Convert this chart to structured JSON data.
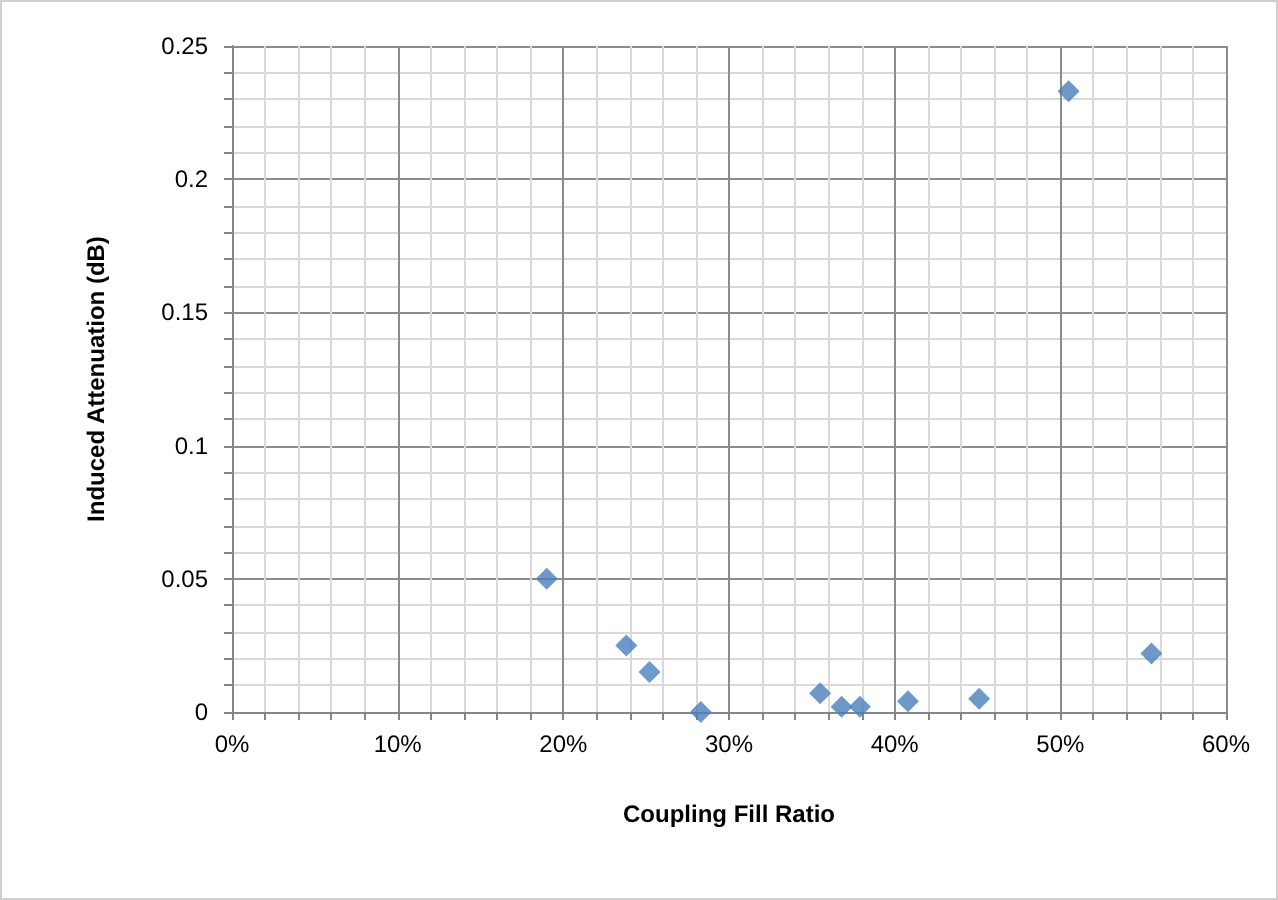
{
  "chart_data": {
    "type": "scatter",
    "xlabel": "Coupling Fill Ratio",
    "ylabel": "Induced Attenuation (dB)",
    "x": [
      0.19,
      0.238,
      0.252,
      0.283,
      0.355,
      0.368,
      0.379,
      0.408,
      0.451,
      0.505,
      0.555
    ],
    "series": [
      {
        "color": "#4a7ebb",
        "values": [
          0.05,
          0.025,
          0.015,
          0,
          0.007,
          0.002,
          0.002,
          0.004,
          0.005,
          0.233,
          0.022
        ]
      }
    ],
    "xlim": [
      0,
      0.6
    ],
    "xticks": [
      {
        "value": 0,
        "label": "0%"
      },
      {
        "value": 0.02,
        "label": null
      },
      {
        "value": 0.04,
        "label": null
      },
      {
        "value": 0.06,
        "label": null
      },
      {
        "value": 0.08,
        "label": null
      },
      {
        "value": 0.1,
        "label": "10%"
      },
      {
        "value": 0.12,
        "label": null
      },
      {
        "value": 0.14,
        "label": null
      },
      {
        "value": 0.16,
        "label": null
      },
      {
        "value": 0.18,
        "label": null
      },
      {
        "value": 0.2,
        "label": "20%"
      },
      {
        "value": 0.22,
        "label": null
      },
      {
        "value": 0.24,
        "label": null
      },
      {
        "value": 0.26,
        "label": null
      },
      {
        "value": 0.28,
        "label": null
      },
      {
        "value": 0.3,
        "label": "30%"
      },
      {
        "value": 0.32,
        "label": null
      },
      {
        "value": 0.34,
        "label": null
      },
      {
        "value": 0.36,
        "label": null
      },
      {
        "value": 0.38,
        "label": null
      },
      {
        "value": 0.4,
        "label": "40%"
      },
      {
        "value": 0.42,
        "label": null
      },
      {
        "value": 0.44,
        "label": null
      },
      {
        "value": 0.46,
        "label": null
      },
      {
        "value": 0.48,
        "label": null
      },
      {
        "value": 0.5,
        "label": "50%"
      },
      {
        "value": 0.52,
        "label": null
      },
      {
        "value": 0.54,
        "label": null
      },
      {
        "value": 0.56,
        "label": null
      },
      {
        "value": 0.58,
        "label": null
      },
      {
        "value": 0.6,
        "label": "60%"
      }
    ],
    "ylim": [
      0,
      0.25
    ],
    "yticks": [
      0,
      {
        "value": 0.01,
        "label": null
      },
      {
        "value": 0.02,
        "label": null
      },
      {
        "value": 0.03,
        "label": null
      },
      {
        "value": 0.04,
        "label": null
      },
      0.05,
      {
        "value": 0.06,
        "label": null
      },
      {
        "value": 0.07,
        "label": null
      },
      {
        "value": 0.08,
        "label": null
      },
      {
        "value": 0.09,
        "label": null
      },
      0.1,
      {
        "value": 0.11,
        "label": null
      },
      {
        "value": 0.12,
        "label": null
      },
      {
        "value": 0.13,
        "label": null
      },
      {
        "value": 0.14,
        "label": null
      },
      0.15,
      {
        "value": 0.16,
        "label": null
      },
      {
        "value": 0.17,
        "label": null
      },
      {
        "value": 0.18,
        "label": null
      },
      {
        "value": 0.19,
        "label": null
      },
      0.2,
      {
        "value": 0.21,
        "label": null
      },
      {
        "value": 0.22,
        "label": null
      },
      {
        "value": 0.23,
        "label": null
      },
      {
        "value": 0.24,
        "label": null
      },
      0.25
    ],
    "grid": true,
    "marker": "diamond"
  }
}
